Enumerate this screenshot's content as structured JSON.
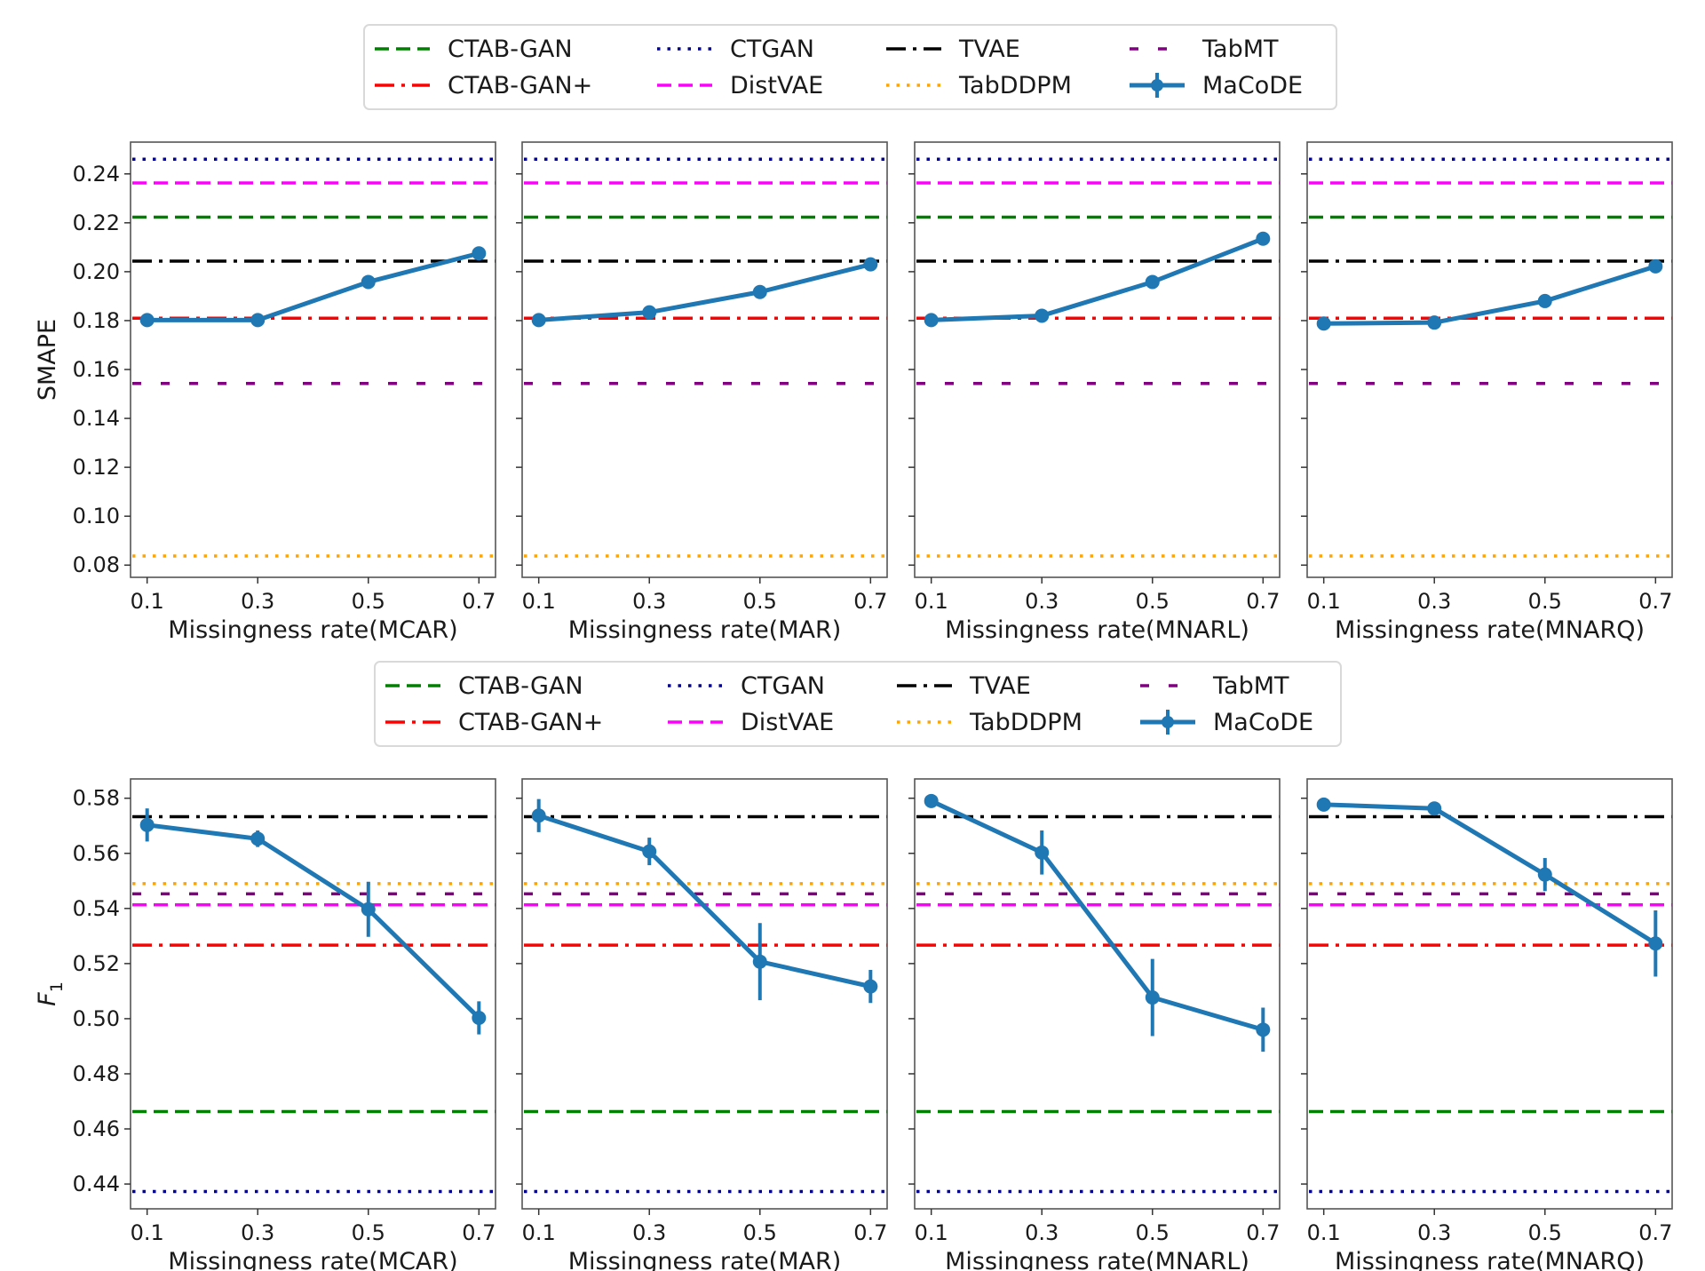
{
  "legend": {
    "entries": [
      {
        "name": "CTAB-GAN",
        "color": "#008000",
        "style": "dashed"
      },
      {
        "name": "CTGAN",
        "color": "#00008b",
        "style": "dotted"
      },
      {
        "name": "TVAE",
        "color": "#000000",
        "style": "dashdot"
      },
      {
        "name": "TabMT",
        "color": "#800080",
        "style": "loosedash"
      },
      {
        "name": "CTAB-GAN+",
        "color": "#ff0000",
        "style": "dashdot"
      },
      {
        "name": "DistVAE",
        "color": "#ff00ff",
        "style": "dashed"
      },
      {
        "name": "TabDDPM",
        "color": "#ffa500",
        "style": "dotted"
      },
      {
        "name": "MaCoDE",
        "color": "#1f77b4",
        "style": "errorbar"
      }
    ]
  },
  "chart_data": [
    {
      "type": "line",
      "row": "SMAPE",
      "ylabel": "SMAPE",
      "ylim": [
        0.075,
        0.253
      ],
      "yticks": [
        0.08,
        0.1,
        0.12,
        0.14,
        0.16,
        0.18,
        0.2,
        0.22,
        0.24
      ],
      "ytick_labels": [
        "0.08",
        "0.10",
        "0.12",
        "0.14",
        "0.16",
        "0.18",
        "0.20",
        "0.22",
        "0.24"
      ],
      "x": [
        0.1,
        0.3,
        0.5,
        0.7
      ],
      "xtick_labels": [
        "0.1",
        "0.3",
        "0.5",
        "0.7"
      ],
      "xlim": [
        0.07,
        0.73
      ],
      "baselines": {
        "CTGAN": 0.246,
        "DistVAE": 0.2363,
        "CTAB-GAN": 0.2223,
        "TVAE": 0.2043,
        "CTAB-GAN+": 0.181,
        "TabMT": 0.1543,
        "TabDDPM": 0.0837
      },
      "panels": [
        {
          "xlabel": "Missingness rate(MCAR)",
          "macode": [
            0.1802,
            0.1802,
            0.1958,
            0.2075
          ],
          "err": [
            0.0008,
            0.0008,
            0.0008,
            0.0012
          ]
        },
        {
          "xlabel": "Missingness rate(MAR)",
          "macode": [
            0.1802,
            0.1834,
            0.1917,
            0.203
          ],
          "err": [
            0.0008,
            0.001,
            0.001,
            0.0012
          ]
        },
        {
          "xlabel": "Missingness rate(MNARL)",
          "macode": [
            0.1802,
            0.182,
            0.1958,
            0.2135
          ],
          "err": [
            0.0008,
            0.0015,
            0.001,
            0.0025
          ]
        },
        {
          "xlabel": "Missingness rate(MNARQ)",
          "macode": [
            0.1788,
            0.1792,
            0.188,
            0.2022
          ],
          "err": [
            0.0008,
            0.0008,
            0.001,
            0.0012
          ]
        }
      ]
    },
    {
      "type": "line",
      "row": "F1",
      "ylabel": "F1",
      "ylim": [
        0.431,
        0.587
      ],
      "yticks": [
        0.44,
        0.46,
        0.48,
        0.5,
        0.52,
        0.54,
        0.56,
        0.58
      ],
      "ytick_labels": [
        "0.44",
        "0.46",
        "0.48",
        "0.50",
        "0.52",
        "0.54",
        "0.56",
        "0.58"
      ],
      "x": [
        0.1,
        0.3,
        0.5,
        0.7
      ],
      "xtick_labels": [
        "0.1",
        "0.3",
        "0.5",
        "0.7"
      ],
      "xlim": [
        0.07,
        0.73
      ],
      "baselines": {
        "TVAE": 0.5733,
        "TabDDPM": 0.549,
        "TabMT": 0.5453,
        "DistVAE": 0.5413,
        "CTAB-GAN+": 0.5267,
        "CTAB-GAN": 0.4663,
        "CTGAN": 0.4373
      },
      "panels": [
        {
          "xlabel": "Missingness rate(MCAR)",
          "macode": [
            0.5703,
            0.5653,
            0.5397,
            0.5003
          ],
          "err": [
            0.006,
            0.003,
            0.01,
            0.006
          ]
        },
        {
          "xlabel": "Missingness rate(MAR)",
          "macode": [
            0.5737,
            0.5607,
            0.5207,
            0.5117
          ],
          "err": [
            0.006,
            0.005,
            0.014,
            0.006
          ]
        },
        {
          "xlabel": "Missingness rate(MNARL)",
          "macode": [
            0.579,
            0.5603,
            0.5077,
            0.496
          ],
          "err": [
            0.001,
            0.008,
            0.014,
            0.008
          ]
        },
        {
          "xlabel": "Missingness rate(MNARQ)",
          "macode": [
            0.5777,
            0.5763,
            0.5523,
            0.5273
          ],
          "err": [
            0.001,
            0.001,
            0.006,
            0.012
          ]
        }
      ]
    }
  ]
}
